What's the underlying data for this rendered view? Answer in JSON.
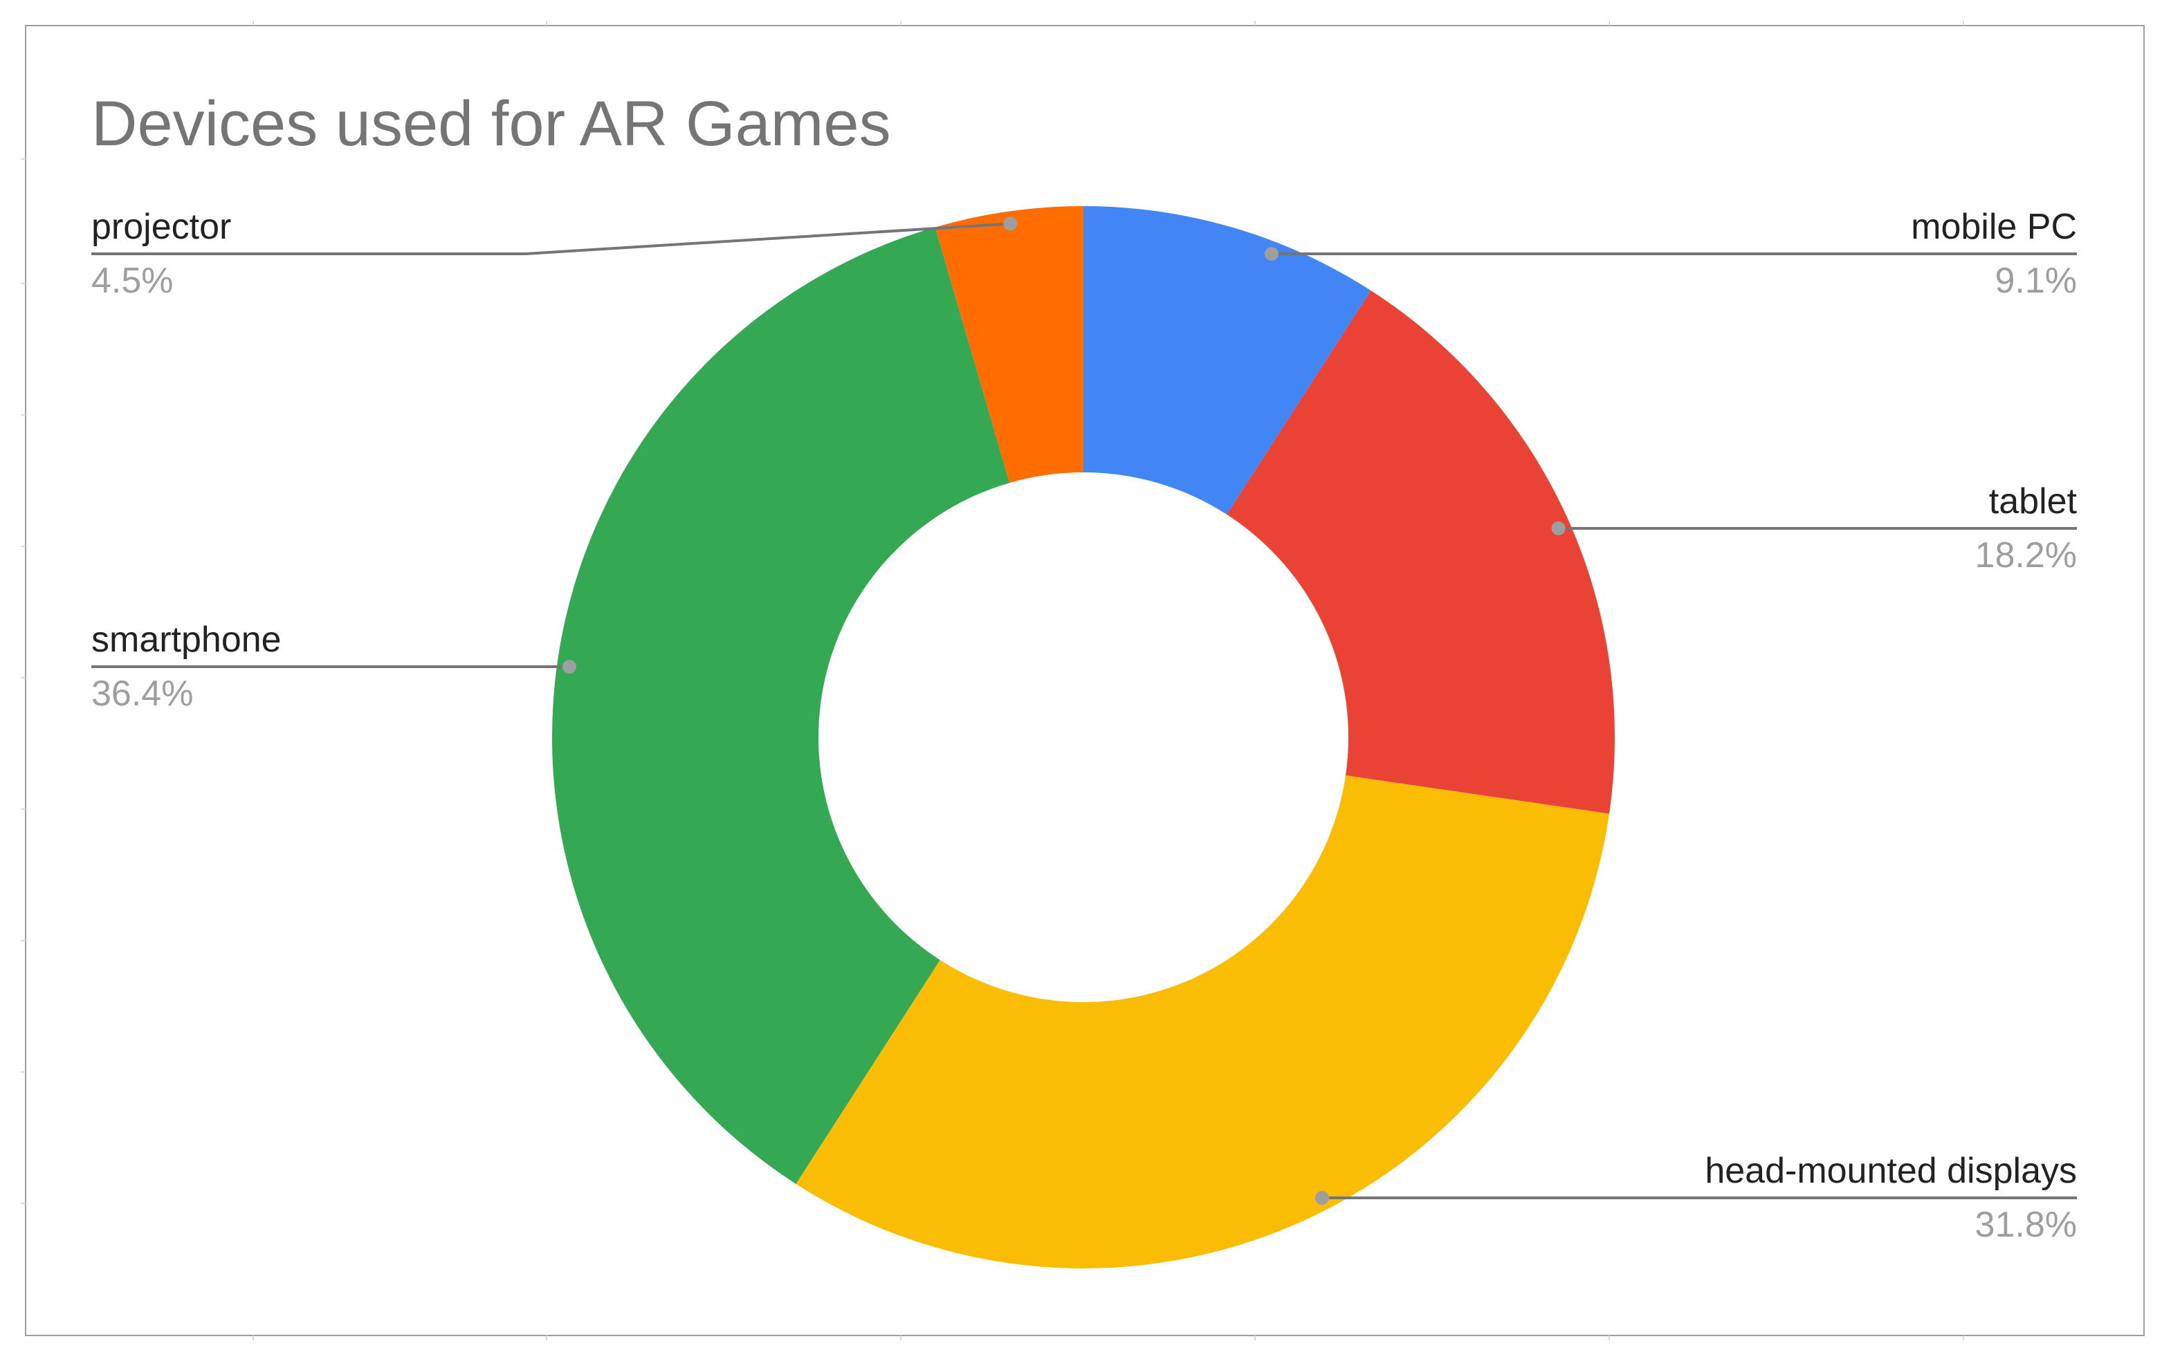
{
  "chart_data": {
    "type": "pie",
    "donut": true,
    "title": "Devices used for AR Games",
    "legend": "labeled",
    "slices": [
      {
        "label": "mobile PC",
        "value": 9.1,
        "display": "9.1%",
        "color": "#4285f4"
      },
      {
        "label": "tablet",
        "value": 18.2,
        "display": "18.2%",
        "color": "#ea4335"
      },
      {
        "label": "head-mounted displays",
        "value": 31.8,
        "display": "31.8%",
        "color": "#fbbc04"
      },
      {
        "label": "smartphone",
        "value": 36.4,
        "display": "36.4%",
        "color": "#34a853"
      },
      {
        "label": "projector",
        "value": 4.5,
        "display": "4.5%",
        "color": "#ff6d01"
      }
    ]
  }
}
